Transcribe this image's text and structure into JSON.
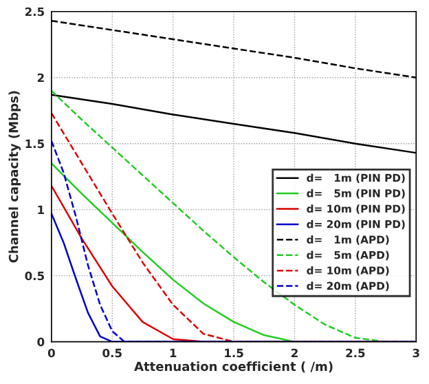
{
  "chart_data": {
    "type": "line",
    "xlabel": "Attenuation coefficient ( /m)",
    "ylabel": "Channel capacity (Mbps)",
    "xlim": [
      0,
      3
    ],
    "ylim": [
      0,
      2.5
    ],
    "xticks": [
      0,
      0.5,
      1,
      1.5,
      2,
      2.5,
      3
    ],
    "yticks": [
      0,
      0.5,
      1,
      1.5,
      2,
      2.5
    ],
    "grid": true,
    "legend": "right",
    "series": [
      {
        "name": "d=   1m (PIN PD)",
        "color": "#000000",
        "line_style": "solid",
        "x": [
          0,
          0.5,
          1,
          1.5,
          2,
          2.5,
          3
        ],
        "values": [
          1.87,
          1.8,
          1.72,
          1.65,
          1.58,
          1.5,
          1.43
        ]
      },
      {
        "name": "d=   5m (PIN PD)",
        "color": "#22cc22",
        "line_style": "solid",
        "x": [
          0,
          0.25,
          0.5,
          0.75,
          1,
          1.25,
          1.5,
          1.75,
          2,
          3
        ],
        "values": [
          1.35,
          1.12,
          0.9,
          0.68,
          0.47,
          0.29,
          0.15,
          0.05,
          0.0,
          0.0
        ]
      },
      {
        "name": "d= 10m (PIN PD)",
        "color": "#dd0000",
        "line_style": "solid",
        "x": [
          0,
          0.25,
          0.5,
          0.75,
          1,
          1.25,
          3
        ],
        "values": [
          1.18,
          0.78,
          0.42,
          0.15,
          0.02,
          0.0,
          0.0
        ]
      },
      {
        "name": "d= 20m (PIN PD)",
        "color": "#0000cc",
        "line_style": "solid",
        "x": [
          0,
          0.1,
          0.2,
          0.3,
          0.4,
          0.5,
          3
        ],
        "values": [
          0.97,
          0.75,
          0.48,
          0.22,
          0.04,
          0.0,
          0.0
        ]
      },
      {
        "name": "d=   1m (APD)",
        "color": "#000000",
        "line_style": "dashed",
        "x": [
          0,
          0.5,
          1,
          1.5,
          2,
          2.5,
          3
        ],
        "values": [
          2.43,
          2.36,
          2.29,
          2.22,
          2.15,
          2.07,
          2.0
        ]
      },
      {
        "name": "d=   5m (APD)",
        "color": "#22cc22",
        "line_style": "dashed",
        "x": [
          0,
          0.25,
          0.5,
          0.75,
          1,
          1.25,
          1.5,
          1.75,
          2,
          2.25,
          2.5,
          2.75,
          3
        ],
        "values": [
          1.9,
          1.68,
          1.47,
          1.26,
          1.05,
          0.84,
          0.64,
          0.45,
          0.28,
          0.13,
          0.03,
          0.0,
          0.0
        ]
      },
      {
        "name": "d= 10m (APD)",
        "color": "#dd0000",
        "line_style": "dashed",
        "x": [
          0,
          0.25,
          0.5,
          0.75,
          1,
          1.25,
          1.5,
          3
        ],
        "values": [
          1.73,
          1.35,
          0.97,
          0.6,
          0.28,
          0.06,
          0.0,
          0.0
        ]
      },
      {
        "name": "d= 20m (APD)",
        "color": "#0000cc",
        "line_style": "dashed",
        "x": [
          0,
          0.1,
          0.2,
          0.3,
          0.4,
          0.5,
          0.6,
          3
        ],
        "values": [
          1.52,
          1.28,
          0.95,
          0.58,
          0.28,
          0.08,
          0.0,
          0.0
        ]
      }
    ]
  }
}
